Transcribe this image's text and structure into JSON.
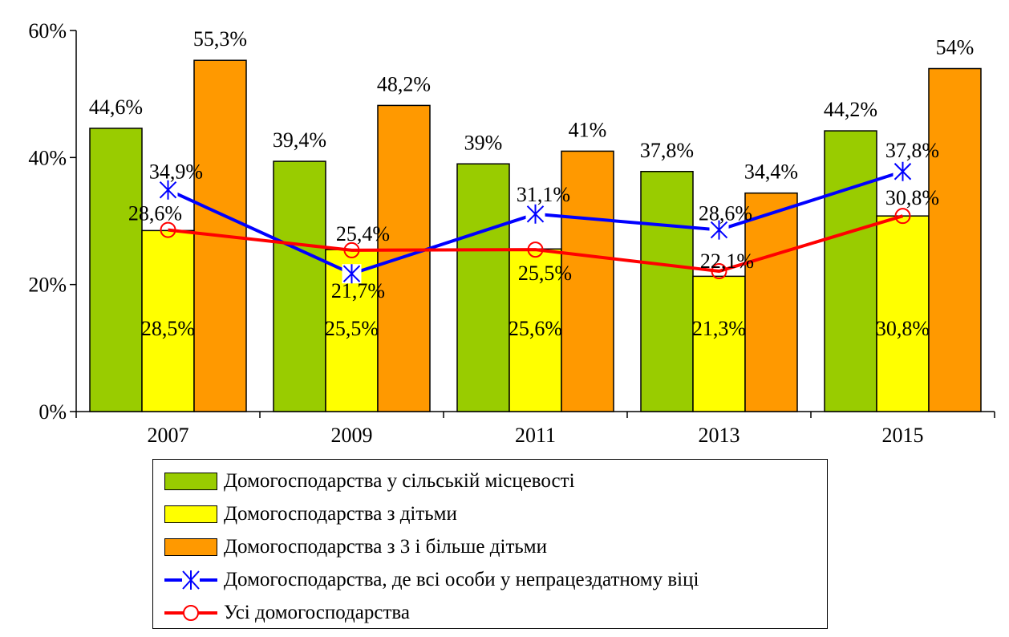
{
  "chart_data": {
    "type": "bar",
    "title": "",
    "xlabel": "",
    "ylabel": "",
    "ylim": [
      0,
      60
    ],
    "yticks": [
      "0%",
      "20%",
      "40%",
      "60%"
    ],
    "ytick_values": [
      0,
      20,
      40,
      60
    ],
    "categories": [
      "2007",
      "2009",
      "2011",
      "2013",
      "2015"
    ],
    "series": [
      {
        "name": "Домогосподарства у сільській місцевості",
        "kind": "bar",
        "color": "#99CC00",
        "values": [
          44.6,
          39.4,
          39,
          37.8,
          44.2
        ],
        "labels": [
          "44,6%",
          "39,4%",
          "39%",
          "37,8%",
          "44,2%"
        ]
      },
      {
        "name": "Домогосподарства з дітьми",
        "kind": "bar",
        "color": "#FFFF00",
        "values": [
          28.5,
          25.5,
          25.6,
          21.3,
          30.8
        ],
        "labels": [
          "28,5%",
          "25,5%",
          "25,6%",
          "21,3%",
          "30,8%"
        ]
      },
      {
        "name": "Домогосподарства з 3 і більше дітьми",
        "kind": "bar",
        "color": "#FF9900",
        "values": [
          55.3,
          48.2,
          41,
          34.4,
          54
        ],
        "labels": [
          "55,3%",
          "48,2%",
          "41%",
          "34,4%",
          "54%"
        ]
      },
      {
        "name": "Домогосподарства, де всі особи у непрацездатному віці",
        "kind": "line",
        "marker": "star",
        "color": "#0000FF",
        "values": [
          34.9,
          21.7,
          31.1,
          28.6,
          37.8
        ],
        "labels": [
          "34,9%",
          "21,7%",
          "31,1%",
          "28,6%",
          "37,8%"
        ]
      },
      {
        "name": "Усі домогосподарства",
        "kind": "line",
        "marker": "circle",
        "color": "#FF0000",
        "values": [
          28.6,
          25.4,
          25.5,
          22.1,
          30.8
        ],
        "labels": [
          "28,6%",
          "25,4%",
          "25,5%",
          "22,1%",
          "30,8%"
        ]
      }
    ],
    "grid": false,
    "legend_position": "bottom"
  }
}
